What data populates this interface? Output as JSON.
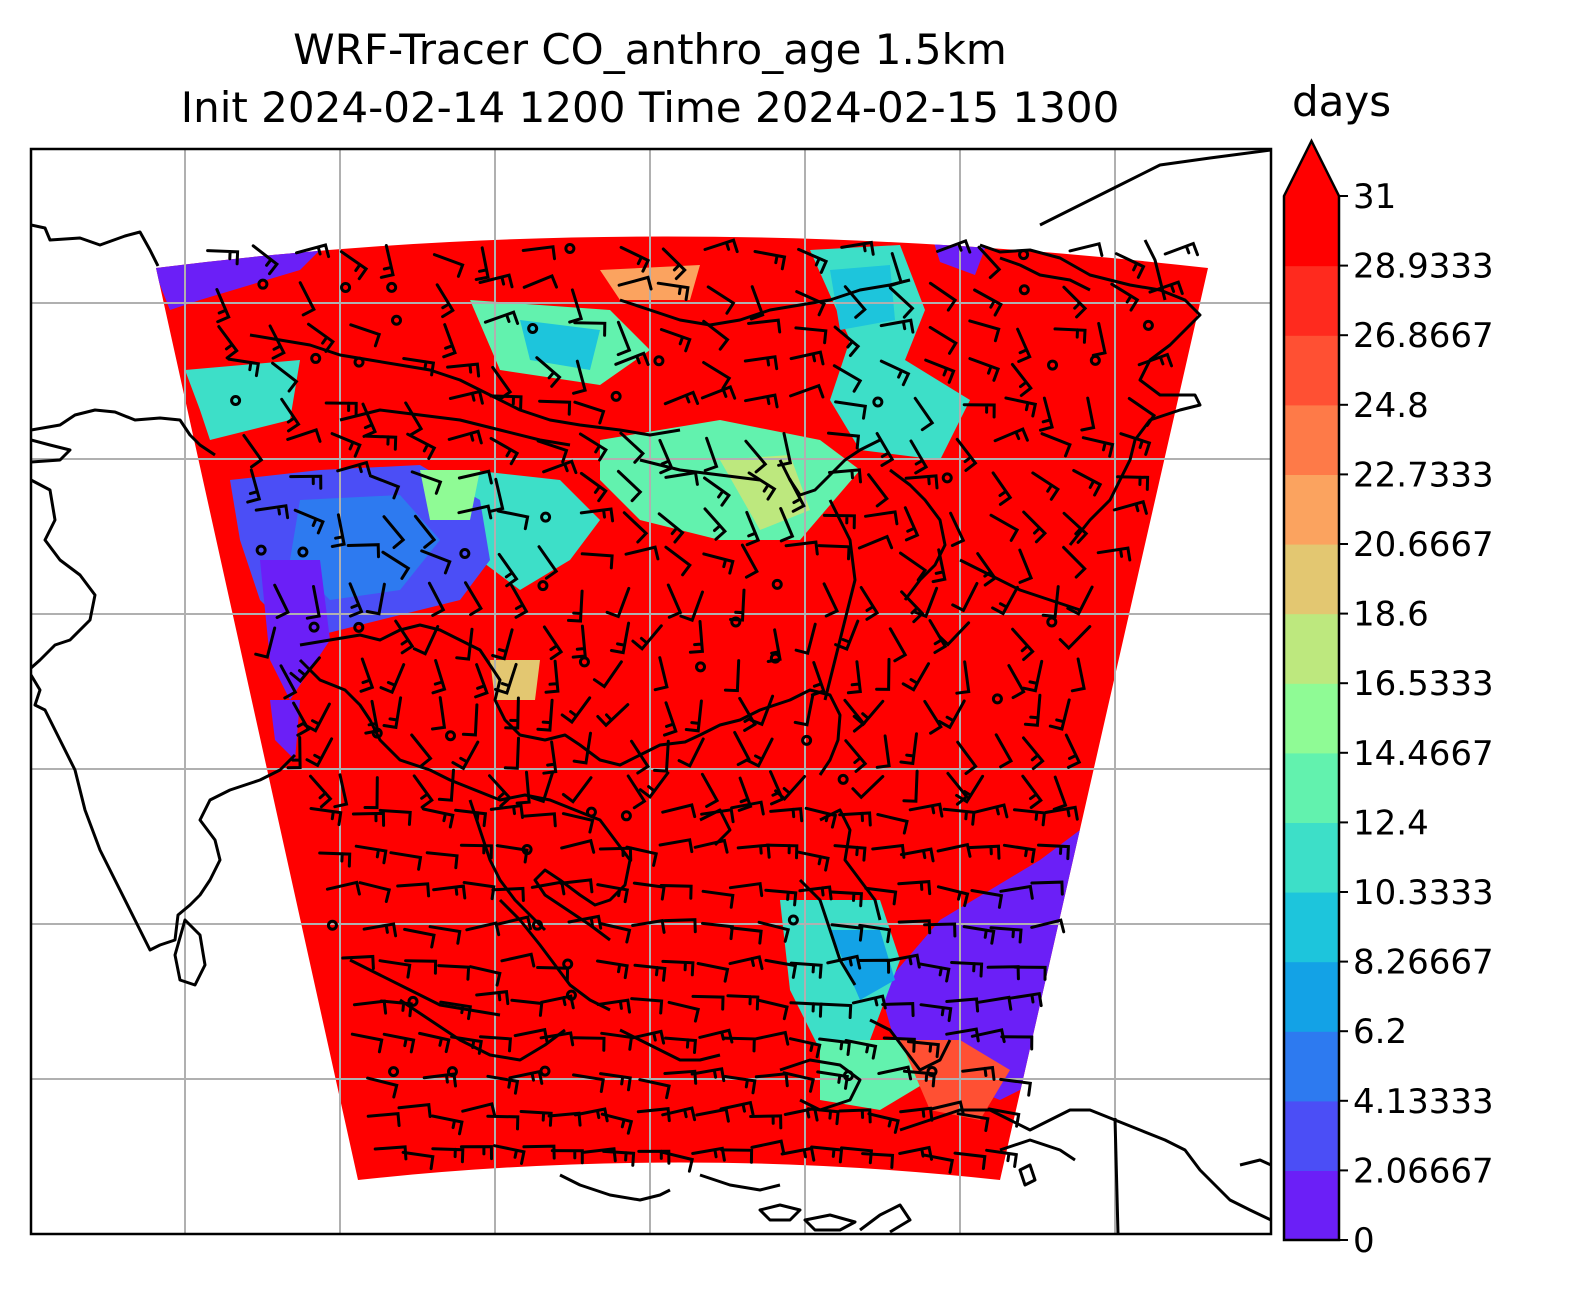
{
  "title": {
    "line1": "WRF-Tracer CO_anthro_age 1.5km",
    "line2": "Init 2024-02-14 1200 Time 2024-02-15 1300"
  },
  "colorbar": {
    "unit": "days",
    "extend": "max",
    "ticks": [
      "31",
      "28.9333",
      "26.8667",
      "24.8",
      "22.7333",
      "20.6667",
      "18.6",
      "16.5333",
      "14.4667",
      "12.4",
      "10.3333",
      "8.26667",
      "6.2",
      "4.13333",
      "2.06667",
      "0"
    ],
    "colors": [
      "#6b1ff7",
      "#4b4ef6",
      "#2d7af0",
      "#13a2e6",
      "#1dc5dc",
      "#3ddfc8",
      "#62f2ae",
      "#8ffb95",
      "#bde87e",
      "#e3c771",
      "#fba35f",
      "#fe7a48",
      "#ff5033",
      "#ff2a1e",
      "#ff0000"
    ],
    "extend_color": "#ff0000"
  },
  "colors": {
    "grid": "#b0b0b0",
    "coast": "#000000",
    "barb": "#000000"
  }
}
